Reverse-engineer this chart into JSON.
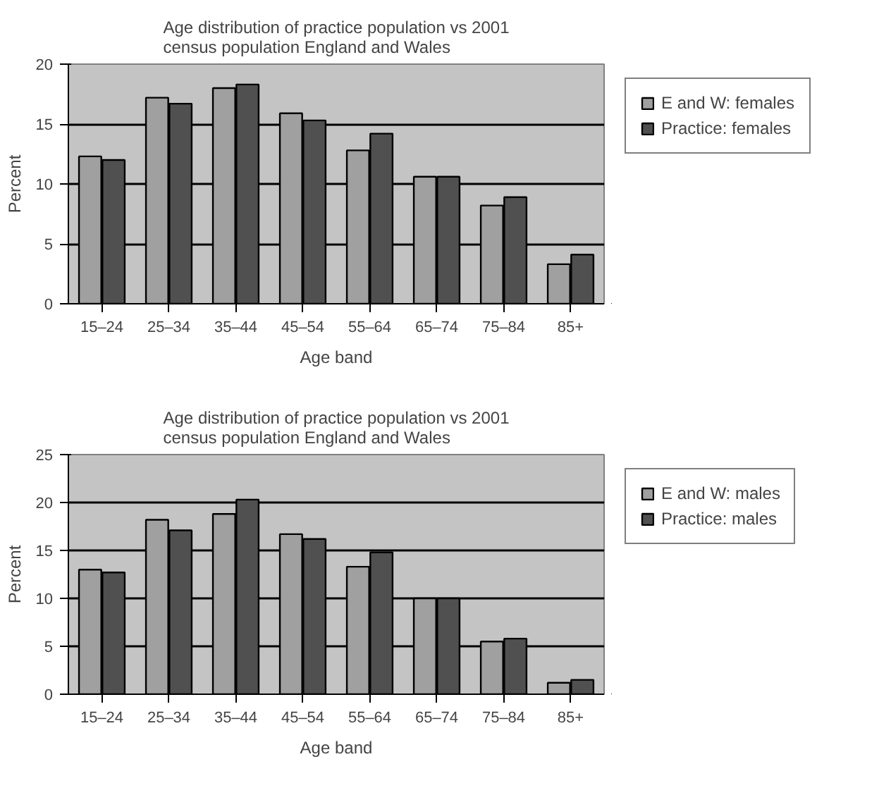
{
  "chart_data": [
    {
      "type": "bar",
      "title": "Age distribution of practice population vs 2001\ncensus population England and Wales",
      "xlabel": "Age band",
      "ylabel": "Percent",
      "categories": [
        "15–24",
        "25–34",
        "35–44",
        "45–54",
        "55–64",
        "65–74",
        "75–84",
        "85+"
      ],
      "series": [
        {
          "name": "E and W: females",
          "color": "#a0a0a0",
          "values": [
            12.3,
            17.2,
            18.0,
            15.9,
            12.8,
            10.6,
            8.2,
            3.3
          ]
        },
        {
          "name": "Practice: females",
          "color": "#505050",
          "values": [
            12.0,
            16.7,
            18.3,
            15.3,
            14.2,
            10.6,
            8.9,
            4.1
          ]
        }
      ],
      "ylim": [
        0,
        20
      ],
      "yticks": [
        0,
        5,
        10,
        15,
        20
      ],
      "grid": "y",
      "legend": "right"
    },
    {
      "type": "bar",
      "title": "Age distribution of practice population vs 2001\ncensus population England and Wales",
      "xlabel": "Age band",
      "ylabel": "Percent",
      "categories": [
        "15–24",
        "25–34",
        "35–44",
        "45–54",
        "55–64",
        "65–74",
        "75–84",
        "85+"
      ],
      "series": [
        {
          "name": "E and W: males",
          "color": "#a0a0a0",
          "values": [
            13.0,
            18.2,
            18.8,
            16.7,
            13.3,
            10.0,
            5.5,
            1.2
          ]
        },
        {
          "name": "Practice: males",
          "color": "#505050",
          "values": [
            12.7,
            17.1,
            20.3,
            16.2,
            14.8,
            10.0,
            5.8,
            1.5
          ]
        }
      ],
      "ylim": [
        0,
        25
      ],
      "yticks": [
        0,
        5,
        10,
        15,
        20,
        25
      ],
      "grid": "y",
      "legend": "right"
    }
  ]
}
